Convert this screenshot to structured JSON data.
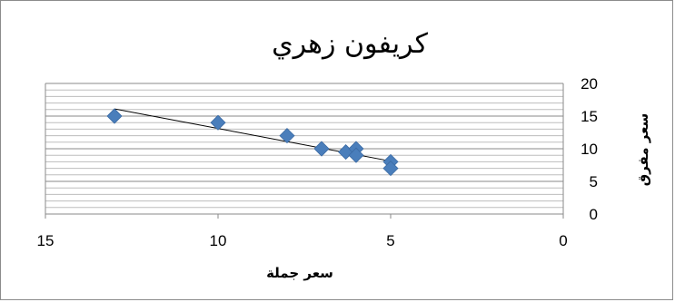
{
  "chart_data": {
    "type": "scatter",
    "title": "كريفون زهري",
    "xlabel": "سعر جملة",
    "ylabel": "سعر مفرق",
    "xlim": [
      0,
      15
    ],
    "ylim": [
      0,
      20
    ],
    "x_reversed": true,
    "y_axis_side": "right",
    "x_ticks": [
      15,
      10,
      5,
      0
    ],
    "y_ticks": [
      0,
      5,
      10,
      15,
      20
    ],
    "grid": "horizontal minor lines",
    "legend": "none",
    "series": [
      {
        "color": "#4a7ebb",
        "marker": "diamond",
        "points": [
          {
            "x": 13,
            "y": 15
          },
          {
            "x": 10,
            "y": 14
          },
          {
            "x": 8,
            "y": 12
          },
          {
            "x": 7,
            "y": 10
          },
          {
            "x": 6.3,
            "y": 9.5
          },
          {
            "x": 6,
            "y": 10
          },
          {
            "x": 6,
            "y": 9
          },
          {
            "x": 5,
            "y": 8
          },
          {
            "x": 5,
            "y": 7
          }
        ]
      }
    ],
    "trendline": {
      "type": "linear",
      "color": "#000000",
      "from": {
        "x": 13,
        "y": 16.1
      },
      "to": {
        "x": 5,
        "y": 8.1
      }
    }
  }
}
